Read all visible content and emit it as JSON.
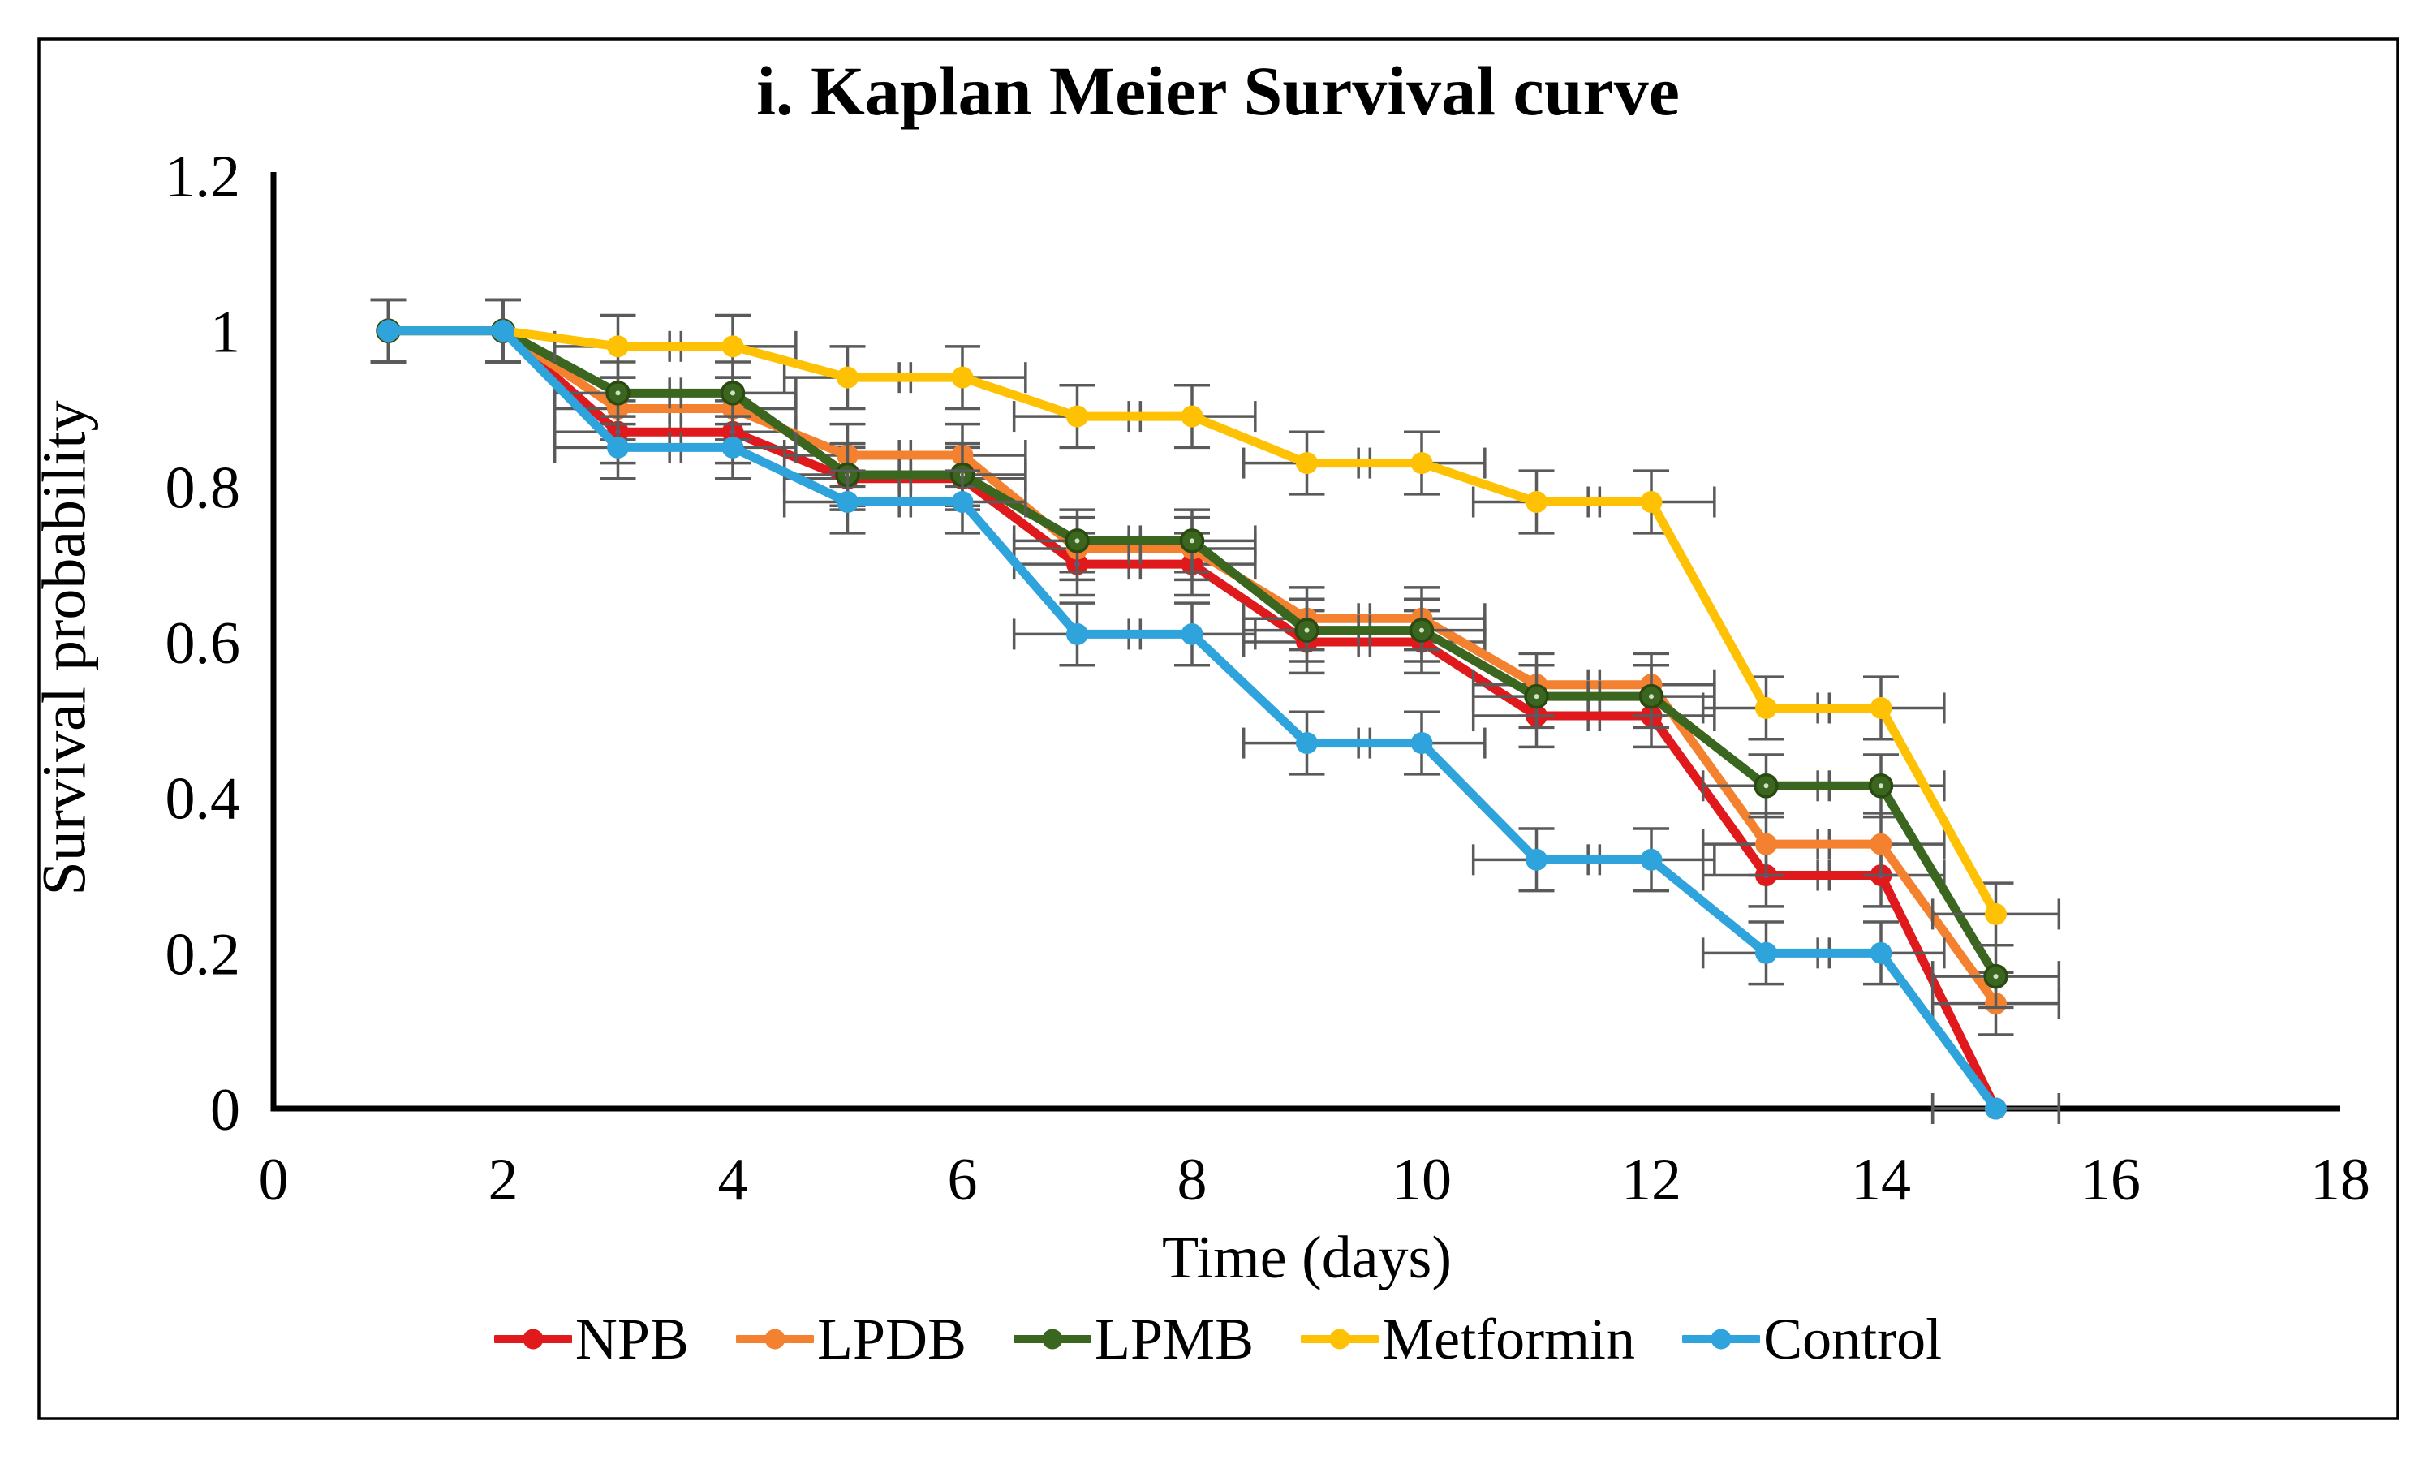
{
  "figure": {
    "title": "i. Kaplan Meier Survival curve",
    "xlabel": "Time (days)",
    "ylabel": "Survival probability",
    "border_color": "#000000",
    "background": "#ffffff"
  },
  "chart_data": {
    "type": "line",
    "title": "i. Kaplan Meier Survival curve",
    "xlabel": "Time (days)",
    "ylabel": "Survival probability",
    "xlim": [
      0,
      18
    ],
    "ylim": [
      0,
      1.2
    ],
    "grid": false,
    "legend_position": "bottom",
    "x": [
      1,
      2,
      3,
      4,
      5,
      6,
      7,
      8,
      9,
      10,
      11,
      12,
      13,
      14,
      15
    ],
    "xtick_labels": [
      "0",
      "2",
      "4",
      "6",
      "8",
      "10",
      "12",
      "14",
      "16",
      "18"
    ],
    "xtick_values": [
      0,
      2,
      4,
      6,
      8,
      10,
      12,
      14,
      16,
      18
    ],
    "ytick_labels": [
      "0",
      "0.2",
      "0.4",
      "0.6",
      "0.8",
      "1",
      "1.2"
    ],
    "ytick_values": [
      0,
      0.2,
      0.4,
      0.6,
      0.8,
      1.0,
      1.2
    ],
    "error_bars": {
      "y_half": 0.04,
      "x_half_days": 0.55,
      "color": "#5a5a5a"
    },
    "series": [
      {
        "name": "NPB",
        "color": "#e0191c",
        "values": [
          1,
          1,
          0.87,
          0.87,
          0.81,
          0.81,
          0.7,
          0.7,
          0.6,
          0.6,
          0.505,
          0.505,
          0.3,
          0.3,
          0
        ]
      },
      {
        "name": "LPDB",
        "color": "#f48130",
        "values": [
          1,
          1,
          0.9,
          0.9,
          0.84,
          0.84,
          0.72,
          0.72,
          0.63,
          0.63,
          0.545,
          0.545,
          0.34,
          0.34,
          0.135
        ]
      },
      {
        "name": "LPMB",
        "color": "#3a661f",
        "values": [
          1,
          1,
          0.92,
          0.92,
          0.815,
          0.815,
          0.73,
          0.73,
          0.615,
          0.615,
          0.53,
          0.53,
          0.415,
          0.415,
          0.17
        ]
      },
      {
        "name": "Metformin",
        "color": "#ffc103",
        "values": [
          1,
          1,
          0.98,
          0.98,
          0.94,
          0.94,
          0.89,
          0.89,
          0.83,
          0.83,
          0.78,
          0.78,
          0.515,
          0.515,
          0.25
        ]
      },
      {
        "name": "Control",
        "color": "#2ea3dc",
        "values": [
          1,
          1,
          0.85,
          0.85,
          0.78,
          0.78,
          0.61,
          0.61,
          0.47,
          0.47,
          0.32,
          0.32,
          0.2,
          0.2,
          0
        ]
      }
    ]
  }
}
